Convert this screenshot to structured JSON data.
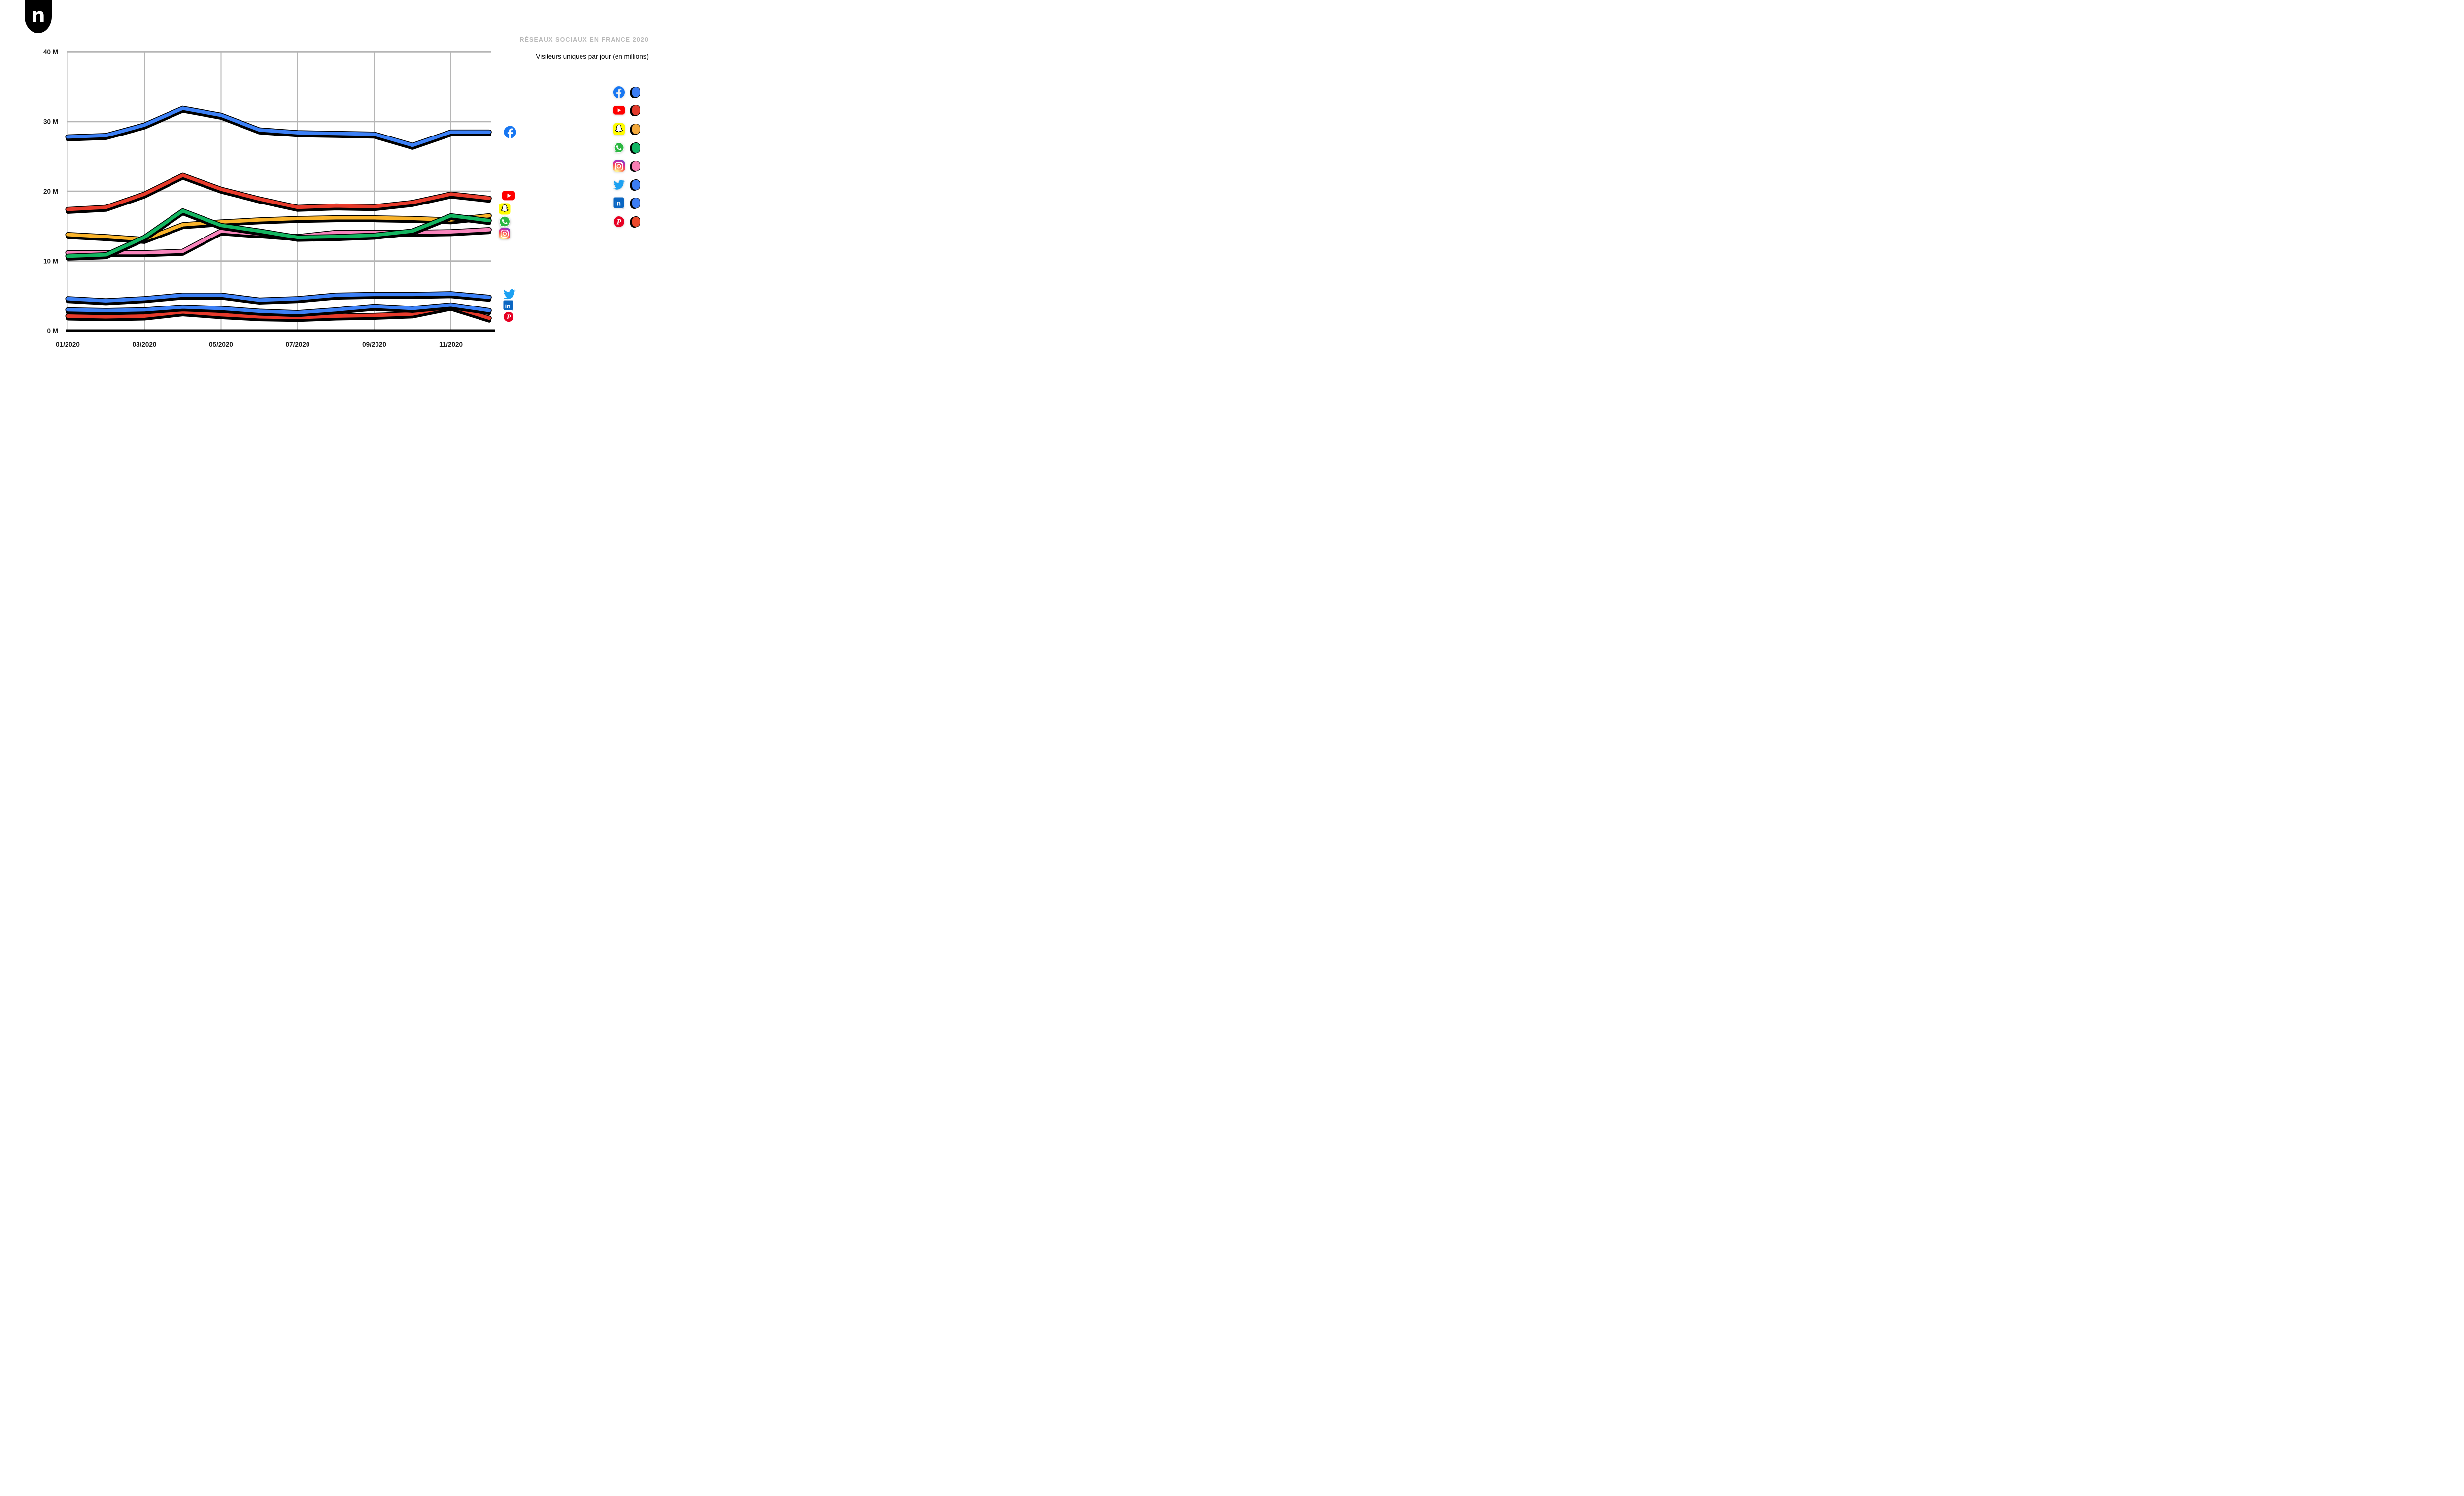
{
  "logo": {
    "letter": "n"
  },
  "header": {
    "title": "RÉSEAUX SOCIAUX EN FRANCE 2020",
    "subtitle": "Visiteurs uniques par jour (en millions)",
    "title_color": "#b9b9b9"
  },
  "icon_glyphs": {
    "linkedin": "in",
    "registered": "®",
    "pinterest": "P"
  },
  "brand_colors": {
    "facebook": "#1877F2",
    "youtube": "#FF0000",
    "snapchat": "#FFFC00",
    "whatsapp": "#2CB742",
    "twitter": "#1DA1F2",
    "linkedin": "#0A66C2",
    "pinterest": "#E60023"
  },
  "chart_data": {
    "type": "line",
    "x": [
      "01/2020",
      "02/2020",
      "03/2020",
      "04/2020",
      "05/2020",
      "06/2020",
      "07/2020",
      "08/2020",
      "09/2020",
      "10/2020",
      "11/2020",
      "12/2020"
    ],
    "x_tick_labels": [
      "01/2020",
      "03/2020",
      "05/2020",
      "07/2020",
      "09/2020",
      "11/2020"
    ],
    "y_tick_labels": [
      "40 M",
      "30 M",
      "20 M",
      "10 M",
      "0 M"
    ],
    "y_tick_values": [
      40,
      30,
      20,
      10,
      0
    ],
    "ylim": [
      0,
      40
    ],
    "xlabel": "",
    "ylabel": "",
    "grid": true,
    "grid_color": "#b5b5b5",
    "axis_color": "#000000",
    "legend_position": "right",
    "series": [
      {
        "name": "Facebook",
        "icon": "facebook",
        "color": "#3C80F6",
        "z": 1,
        "values": [
          27.8,
          28.0,
          29.5,
          31.9,
          30.9,
          28.8,
          28.4,
          28.3,
          28.2,
          26.6,
          28.5,
          28.5
        ]
      },
      {
        "name": "YouTube",
        "icon": "youtube",
        "color": "#E73A2B",
        "z": 2,
        "values": [
          17.4,
          17.7,
          19.6,
          22.3,
          20.3,
          18.9,
          17.7,
          17.9,
          17.8,
          18.4,
          19.6,
          19.0
        ]
      },
      {
        "name": "Snapchat",
        "icon": "snapchat",
        "color": "#F9B32B",
        "z": 4,
        "values": [
          13.8,
          13.5,
          13.1,
          15.2,
          15.6,
          15.9,
          16.1,
          16.2,
          16.2,
          16.1,
          15.9,
          16.5
        ]
      },
      {
        "name": "WhatsApp",
        "icon": "whatsapp",
        "color": "#13B560",
        "z": 5,
        "values": [
          10.7,
          10.9,
          13.4,
          17.2,
          15.1,
          14.3,
          13.4,
          13.5,
          13.7,
          14.3,
          16.5,
          15.8
        ]
      },
      {
        "name": "Instagram",
        "icon": "instagram",
        "color": "#F884BC",
        "z": 3,
        "values": [
          11.2,
          11.2,
          11.2,
          11.4,
          14.3,
          13.9,
          13.5,
          14.1,
          14.1,
          14.1,
          14.2,
          14.5
        ]
      },
      {
        "name": "Twitter",
        "icon": "twitter",
        "color": "#3C80F6",
        "z": 6,
        "values": [
          4.6,
          4.3,
          4.6,
          5.1,
          5.1,
          4.4,
          4.6,
          5.1,
          5.2,
          5.2,
          5.3,
          4.8
        ]
      },
      {
        "name": "LinkedIn",
        "icon": "linkedin",
        "color": "#3C80F6",
        "z": 8,
        "values": [
          3.0,
          2.9,
          3.0,
          3.4,
          3.2,
          2.8,
          2.6,
          3.0,
          3.5,
          3.2,
          3.7,
          2.9
        ]
      },
      {
        "name": "Pinterest",
        "icon": "pinterest",
        "color": "#E73A2B",
        "z": 7,
        "values": [
          2.1,
          2.0,
          2.1,
          2.7,
          2.3,
          2.0,
          1.9,
          2.1,
          2.2,
          2.4,
          3.5,
          1.8
        ]
      }
    ]
  },
  "legend": {
    "items": [
      {
        "label": "Facebook",
        "icon": "facebook",
        "swatch_color": "#3C7DF3"
      },
      {
        "label": "YouTube",
        "icon": "youtube",
        "swatch_color": "#E23B2C"
      },
      {
        "label": "Snapchat",
        "icon": "snapchat",
        "swatch_color": "#F3A93C"
      },
      {
        "label": "WhatsApp",
        "icon": "whatsapp",
        "swatch_color": "#10B564"
      },
      {
        "label": "Instagram",
        "icon": "instagram",
        "swatch_color": "#F87FB3"
      },
      {
        "label": "Twitter",
        "icon": "twitter",
        "swatch_color": "#3C7DF3"
      },
      {
        "label": "LinkedIn",
        "icon": "linkedin",
        "swatch_color": "#3C7DF3"
      },
      {
        "label": "Pinterest",
        "icon": "pinterest",
        "swatch_color": "#EA4A2C"
      }
    ]
  }
}
